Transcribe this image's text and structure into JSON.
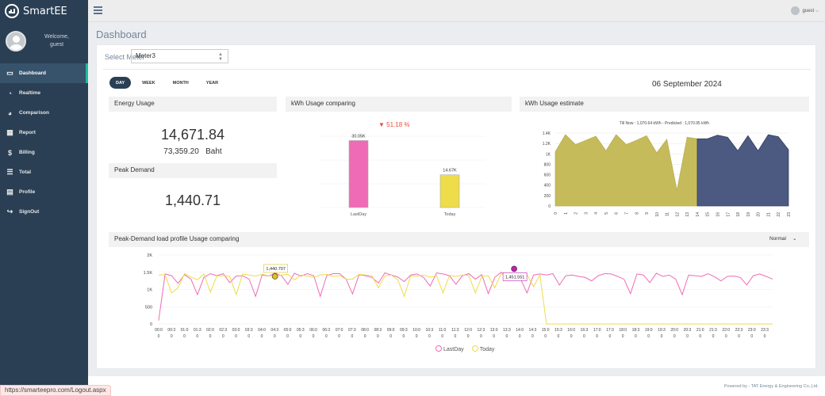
{
  "app": {
    "brand": "SmartEE"
  },
  "profile": {
    "welcome": "Welcome,",
    "user": "guest"
  },
  "sidebar": {
    "items": [
      {
        "label": "Dashboard",
        "icon": "monitor-icon",
        "active": true
      },
      {
        "label": "Realtime",
        "icon": "dashboard-icon"
      },
      {
        "label": "Comparison",
        "icon": "pie-chart-icon"
      },
      {
        "label": "Report",
        "icon": "table-icon"
      },
      {
        "label": "Billing",
        "icon": "dollar-icon"
      },
      {
        "label": "Total",
        "icon": "list-icon"
      },
      {
        "label": "Profile",
        "icon": "profile-icon"
      },
      {
        "label": "SignOut",
        "icon": "sign-out-icon"
      }
    ]
  },
  "topbar": {
    "user": "guest"
  },
  "page": {
    "title": "Dashboard"
  },
  "meter": {
    "label": "Select Meter",
    "value": "Meter3"
  },
  "periods": [
    "DAY",
    "WEEK",
    "MONTH",
    "YEAR"
  ],
  "date": "06 September 2024",
  "energy": {
    "title": "Energy Usage",
    "value": "14,671.84",
    "baht_value": "73,359.20",
    "baht_unit": "Baht"
  },
  "peak": {
    "title": "Peak Demand",
    "value": "1,440.71"
  },
  "compare": {
    "title": "kWh Usage comparing",
    "change": "51.18 %"
  },
  "estimate": {
    "title": "kWh Usage estimate",
    "note": "Till Now : 1,070.64 kWh - Predicted : 1,070.95 kWh"
  },
  "profile_chart": {
    "title": "Peak-Demand load profile Usage comparing",
    "mode": "Normal"
  },
  "footer": {
    "text": "Powered by - TAT Energy & Engineering Co.,Ltd."
  },
  "status_url": "https://smarteepro.com/Logout.aspx",
  "colors": {
    "sidebar": "#2a3f54",
    "lastday": "#f06bb5",
    "today": "#eedc4a",
    "estimate_actual": "#c5bb5b",
    "estimate_pred": "#4c5a82"
  },
  "chart_data": [
    {
      "type": "bar",
      "categories": [
        "LastDay",
        "Today"
      ],
      "values": [
        30050,
        14670
      ],
      "data_labels": [
        "30.05K",
        "14.67K"
      ]
    },
    {
      "type": "area",
      "title": "Till Now : 1,070.64 kWh - Predicted : 1,070.95 kWh",
      "categories": [
        "0",
        "1",
        "2",
        "3",
        "4",
        "5",
        "6",
        "7",
        "8",
        "9",
        "10",
        "11",
        "12",
        "13",
        "14",
        "15",
        "16",
        "17",
        "18",
        "19",
        "20",
        "21",
        "22",
        "23"
      ],
      "series": [
        {
          "values": [
            1040,
            1370,
            1180,
            1260,
            1340,
            1060,
            1370,
            1180,
            1260,
            1350,
            1020,
            1280,
            300,
            1320,
            1290,
            null,
            null,
            null,
            null,
            null,
            null,
            null,
            null,
            null
          ]
        },
        {
          "values": [
            null,
            null,
            null,
            null,
            null,
            null,
            null,
            null,
            null,
            null,
            null,
            null,
            null,
            null,
            null,
            1290,
            1360,
            1320,
            1060,
            1350,
            1060,
            1370,
            1330,
            1080
          ]
        }
      ],
      "y_ticks": [
        "0",
        "200",
        "400",
        "600",
        "800",
        "1K",
        "1.2K",
        "1.4K"
      ],
      "ylim": [
        0,
        1400
      ]
    },
    {
      "type": "line",
      "x_ticks": [
        "00:0",
        "00:3",
        "01:0",
        "01:3",
        "02:0",
        "02:3",
        "03:0",
        "03:3",
        "04:0",
        "04:3",
        "05:0",
        "05:3",
        "06:0",
        "06:3",
        "07:0",
        "07:3",
        "08:0",
        "08:3",
        "09:0",
        "09:3",
        "10:0",
        "10:3",
        "11:0",
        "11:3",
        "12:0",
        "12:3",
        "13:0",
        "13:3",
        "14:0",
        "14:3",
        "15:0",
        "15:3",
        "16:0",
        "16:3",
        "17:0",
        "17:3",
        "18:0",
        "18:3",
        "19:0",
        "19:3",
        "20:0",
        "20:3",
        "21:0",
        "21:3",
        "22:0",
        "22:3",
        "23:0",
        "23:3"
      ],
      "x_sub": "0",
      "y_ticks": [
        "0",
        "500",
        "1K",
        "1.5K",
        "2K"
      ],
      "ylim": [
        0,
        2000
      ],
      "series": [
        {
          "name": "LastDay",
          "values": [
            100,
            1450,
            1400,
            1180,
            1430,
            1300,
            850,
            1350,
            1460,
            1400,
            1460,
            1200,
            1390,
            1400,
            1300,
            800,
            1420,
            1390,
            1480,
            1400,
            1150,
            1470,
            1390,
            1460,
            1400,
            800,
            1400,
            1460,
            1460,
            1300,
            870,
            1430,
            1400,
            1350,
            1190,
            1480,
            1420,
            1360,
            1230,
            1420,
            1450,
            1350,
            1100,
            1480,
            1450,
            1400,
            1150,
            1400,
            1460,
            1300,
            1430,
            880,
            1350,
            1500,
            1390,
            1310,
            1300,
            900,
            1420,
            1450,
            1420,
            1460,
            1130,
            1400,
            1420,
            1380,
            1350,
            1250,
            1400,
            1460,
            1450,
            1380,
            1300,
            880,
            1450,
            1420,
            1200,
            1470,
            1380,
            1420,
            1300,
            850,
            1420,
            1400,
            1380,
            1460,
            1370,
            1250,
            1380,
            1390,
            1350,
            1130,
            1400,
            1450,
            1380,
            1300
          ],
          "highlight": "1,451.551"
        },
        {
          "name": "Today",
          "values": [
            1420,
            1430,
            900,
            1050,
            1460,
            1360,
            1280,
            1450,
            920,
            1390,
            1400,
            1380,
            850,
            1450,
            1420,
            1390,
            1440,
            1400,
            1380,
            1420,
            1440,
            1280,
            1420,
            1390,
            1350,
            1420,
            1440,
            1380,
            1400,
            1300,
            1300,
            1440,
            1420,
            1400,
            1050,
            1390,
            1420,
            1280,
            800,
            1400,
            1390,
            1420,
            1360,
            1400,
            900,
            1410,
            1380,
            1420,
            1410,
            900,
            1380,
            1400,
            1050,
            1460,
            1400,
            1420,
            1380,
            1430,
            1080,
            1420,
            0,
            0,
            0,
            0,
            0,
            0,
            0,
            0,
            0,
            0,
            0,
            0,
            0,
            0,
            0,
            0,
            0,
            0,
            0,
            0,
            0,
            0,
            0,
            0,
            0,
            0,
            0,
            0,
            0,
            0,
            0,
            0,
            0,
            0,
            0,
            0
          ],
          "highlight": "1,440.707"
        }
      ],
      "legend": "bottom-center"
    }
  ]
}
